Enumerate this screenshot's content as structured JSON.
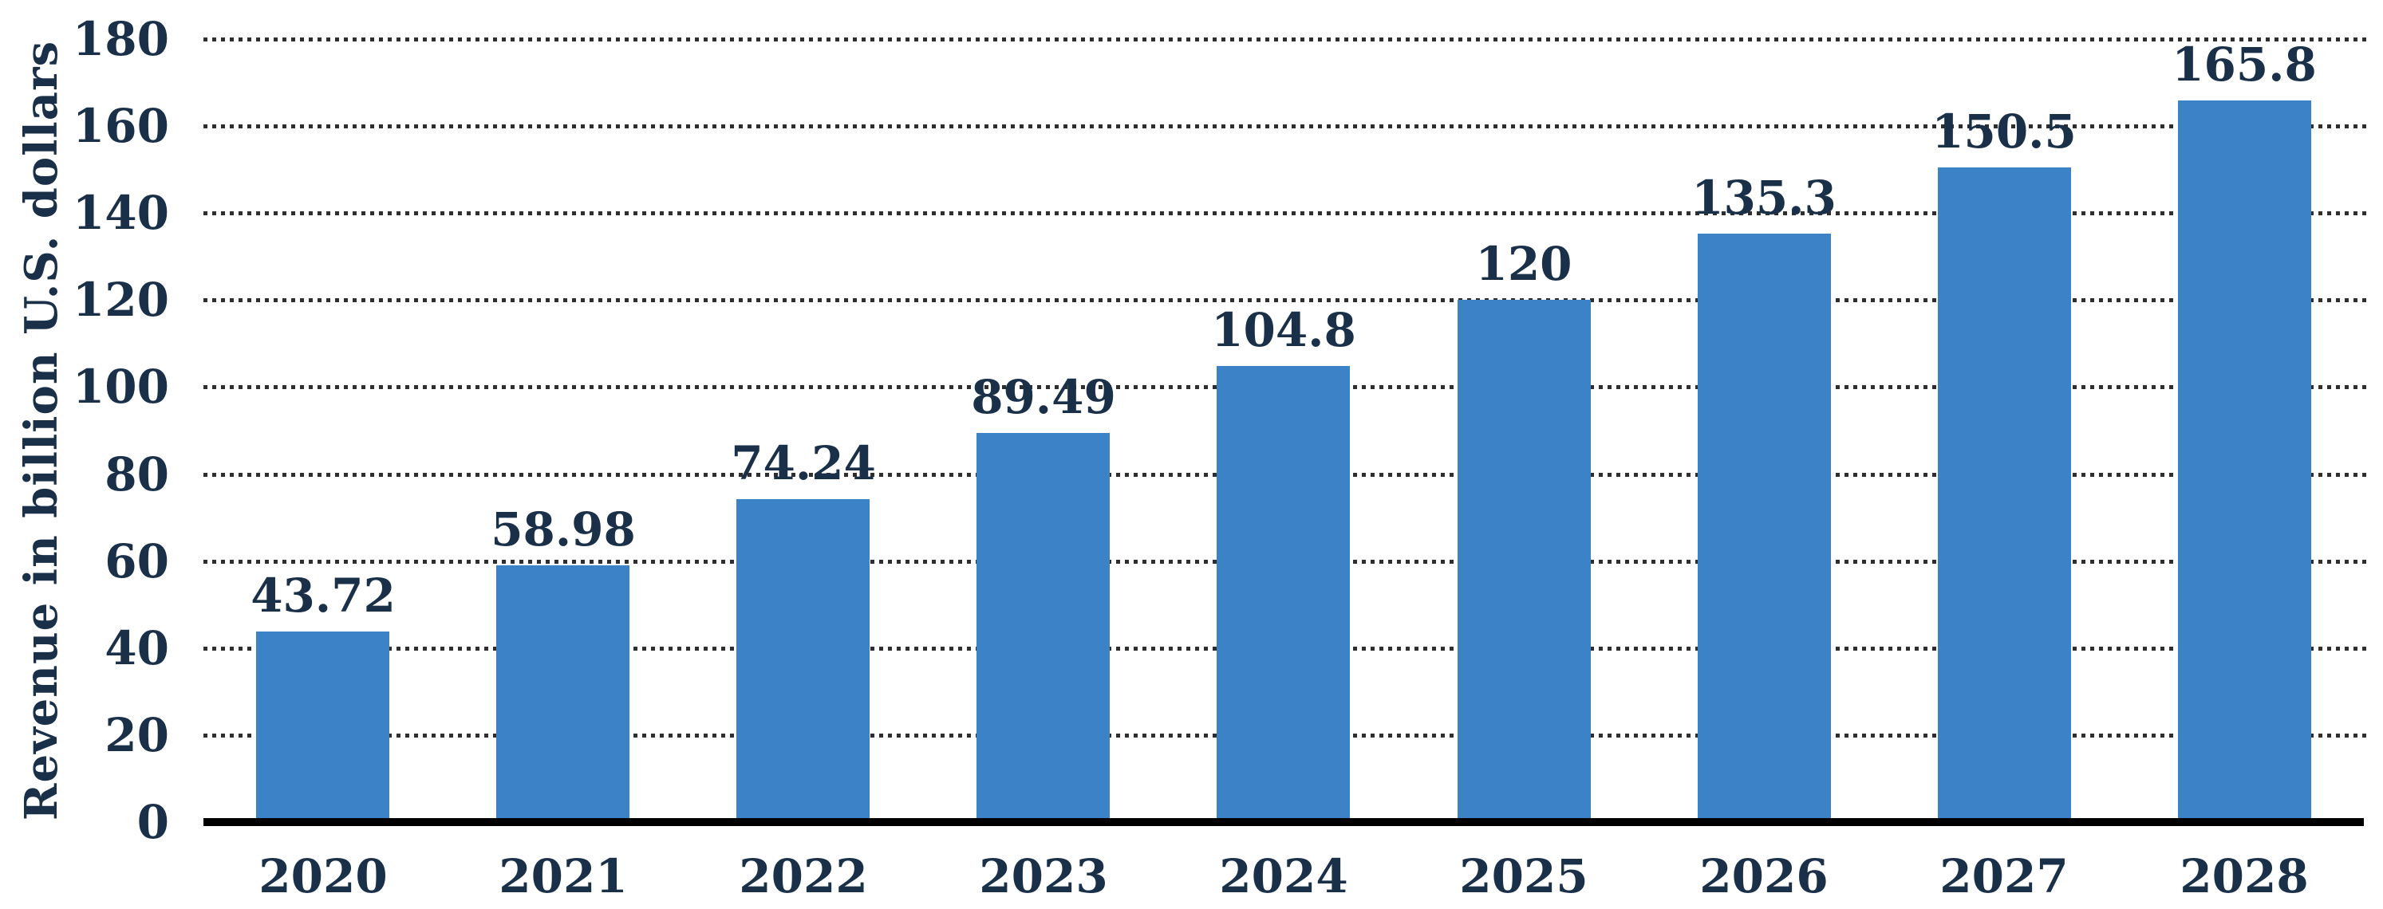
{
  "chart_data": {
    "type": "bar",
    "title": "",
    "xlabel": "",
    "ylabel": "Revenue in billion U.S. dollars",
    "categories": [
      "2020",
      "2021",
      "2022",
      "2023",
      "2024",
      "2025",
      "2026",
      "2027",
      "2028"
    ],
    "values": [
      43.72,
      58.98,
      74.24,
      89.49,
      104.8,
      120,
      135.3,
      150.5,
      165.8
    ],
    "value_labels": [
      "43.72",
      "58.98",
      "74.24",
      "89.49",
      "104.8",
      "120",
      "135.3",
      "150.5",
      "165.8"
    ],
    "ylim": [
      0,
      180
    ],
    "ytick_step": 20,
    "ytick_labels": [
      "0",
      "20",
      "40",
      "60",
      "80",
      "100",
      "120",
      "140",
      "160",
      "180"
    ],
    "grid": "horizontal-dotted",
    "legend_position": "none",
    "colors": {
      "bar": "#3b82c6",
      "text": "#1a3049",
      "gridline": "#2e2e2e",
      "axis_line": "#000000",
      "background": "#ffffff"
    }
  }
}
